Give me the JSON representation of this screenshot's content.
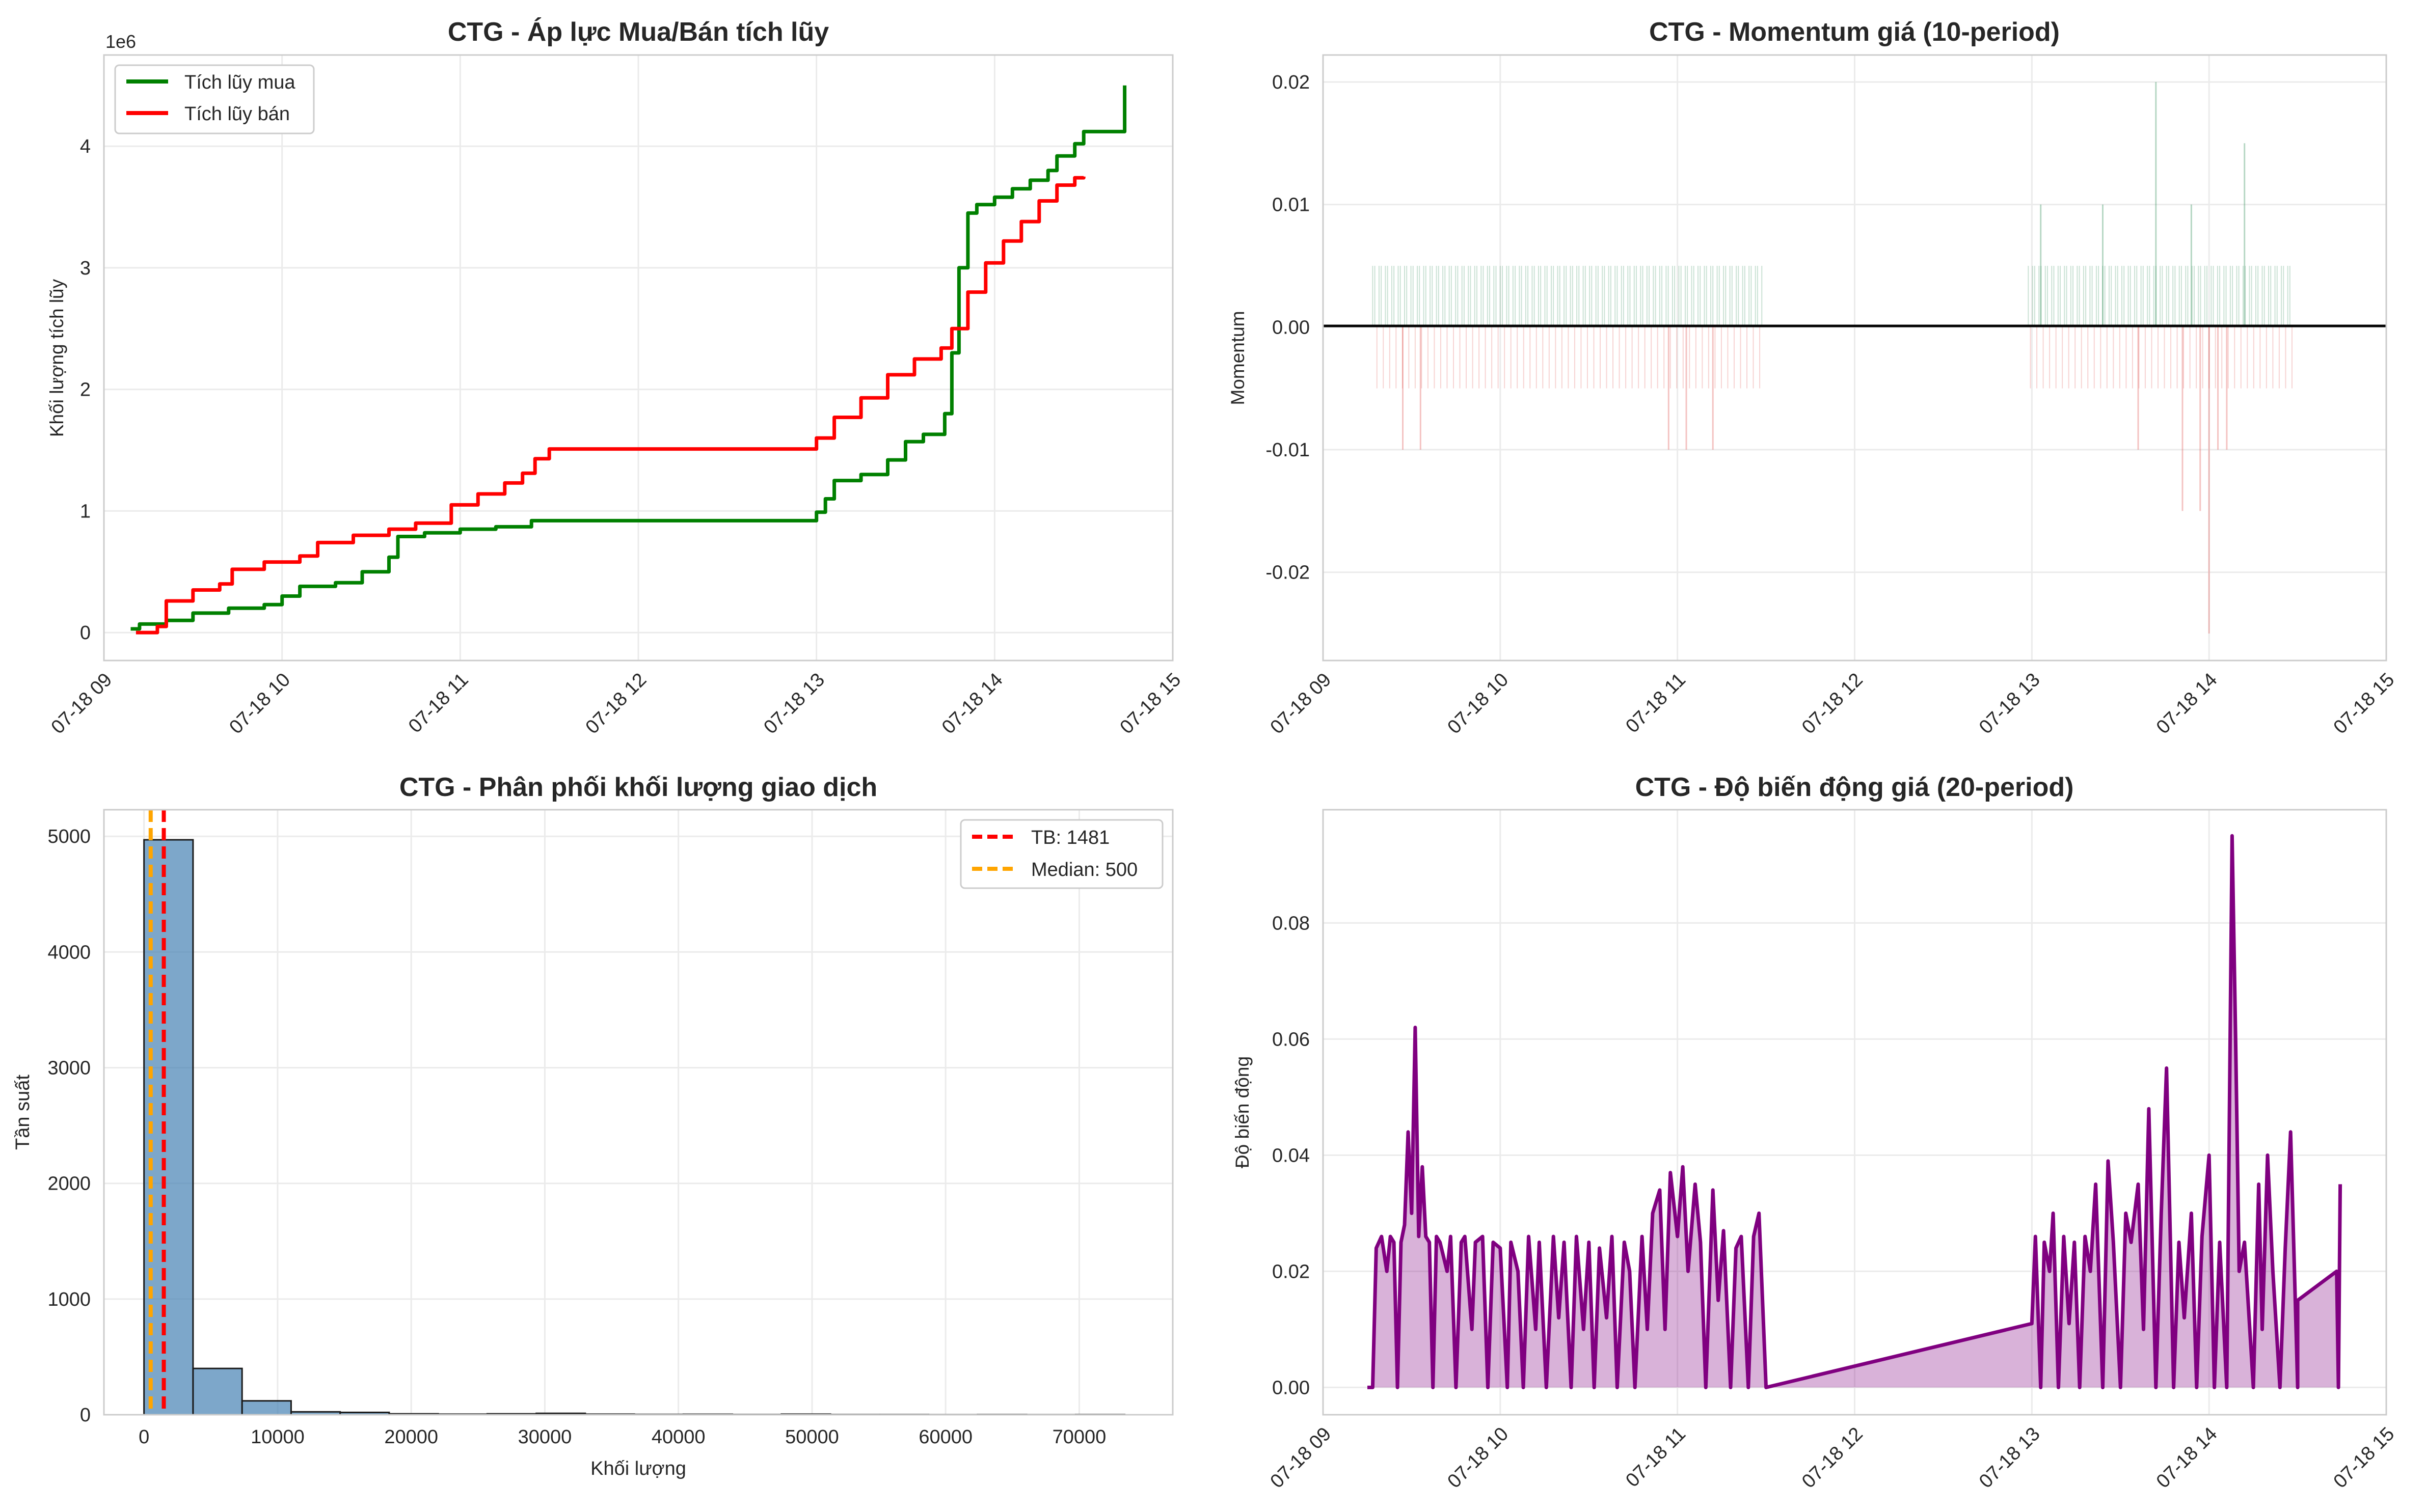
{
  "chart_data": [
    {
      "type": "line",
      "title": "CTG - Áp lực Mua/Bán tích lũy",
      "xlabel": "",
      "ylabel": "Khối lượng tích lũy",
      "offset_label": "1e6",
      "ylim": [
        -0.23,
        4.75
      ],
      "yticks": [
        0,
        1,
        2,
        3,
        4
      ],
      "xlim": [
        9.0,
        15.0
      ],
      "xticks": [
        9,
        10,
        11,
        12,
        13,
        14,
        15
      ],
      "xtick_labels": [
        "07-18 09",
        "07-18 10",
        "07-18 11",
        "07-18 12",
        "07-18 13",
        "07-18 14",
        "07-18 15"
      ],
      "legend": "top-left",
      "grid": true,
      "series": [
        {
          "name": "Tích lũy mua",
          "color": "#008000",
          "points": [
            [
              9.15,
              0.03
            ],
            [
              9.2,
              0.07
            ],
            [
              9.35,
              0.1
            ],
            [
              9.5,
              0.16
            ],
            [
              9.7,
              0.2
            ],
            [
              9.9,
              0.23
            ],
            [
              10.0,
              0.3
            ],
            [
              10.1,
              0.38
            ],
            [
              10.3,
              0.41
            ],
            [
              10.45,
              0.5
            ],
            [
              10.6,
              0.62
            ],
            [
              10.65,
              0.79
            ],
            [
              10.8,
              0.82
            ],
            [
              11.0,
              0.85
            ],
            [
              11.2,
              0.87
            ],
            [
              11.4,
              0.92
            ],
            [
              11.6,
              0.92
            ],
            [
              12.9,
              0.92
            ],
            [
              13.0,
              0.99
            ],
            [
              13.05,
              1.1
            ],
            [
              13.1,
              1.25
            ],
            [
              13.25,
              1.3
            ],
            [
              13.4,
              1.42
            ],
            [
              13.5,
              1.57
            ],
            [
              13.6,
              1.63
            ],
            [
              13.72,
              1.8
            ],
            [
              13.76,
              2.3
            ],
            [
              13.8,
              3.0
            ],
            [
              13.85,
              3.45
            ],
            [
              13.9,
              3.52
            ],
            [
              14.0,
              3.58
            ],
            [
              14.1,
              3.65
            ],
            [
              14.2,
              3.72
            ],
            [
              14.3,
              3.8
            ],
            [
              14.35,
              3.92
            ],
            [
              14.45,
              4.02
            ],
            [
              14.5,
              4.12
            ],
            [
              14.68,
              4.12
            ],
            [
              14.72,
              4.12
            ],
            [
              14.73,
              4.5
            ]
          ]
        },
        {
          "name": "Tích lũy bán",
          "color": "#ff0000",
          "points": [
            [
              9.18,
              0.0
            ],
            [
              9.3,
              0.05
            ],
            [
              9.35,
              0.26
            ],
            [
              9.5,
              0.35
            ],
            [
              9.65,
              0.4
            ],
            [
              9.72,
              0.52
            ],
            [
              9.9,
              0.58
            ],
            [
              10.1,
              0.63
            ],
            [
              10.2,
              0.74
            ],
            [
              10.4,
              0.8
            ],
            [
              10.6,
              0.85
            ],
            [
              10.75,
              0.9
            ],
            [
              10.95,
              1.05
            ],
            [
              11.1,
              1.14
            ],
            [
              11.25,
              1.23
            ],
            [
              11.35,
              1.31
            ],
            [
              11.42,
              1.43
            ],
            [
              11.5,
              1.51
            ],
            [
              12.9,
              1.51
            ],
            [
              13.0,
              1.6
            ],
            [
              13.1,
              1.77
            ],
            [
              13.25,
              1.93
            ],
            [
              13.4,
              2.12
            ],
            [
              13.55,
              2.25
            ],
            [
              13.7,
              2.34
            ],
            [
              13.76,
              2.5
            ],
            [
              13.8,
              2.5
            ],
            [
              13.85,
              2.8
            ],
            [
              13.95,
              3.04
            ],
            [
              14.05,
              3.22
            ],
            [
              14.15,
              3.38
            ],
            [
              14.25,
              3.55
            ],
            [
              14.35,
              3.68
            ],
            [
              14.45,
              3.74
            ],
            [
              14.5,
              3.75
            ]
          ]
        }
      ]
    },
    {
      "type": "bar",
      "title": "CTG - Momentum giá (10-period)",
      "xlabel": "",
      "ylabel": "Momentum",
      "ylim": [
        -0.0272,
        0.0222
      ],
      "yticks": [
        -0.02,
        -0.01,
        0.0,
        0.01,
        0.02
      ],
      "ytick_labels": [
        "-0.02",
        "-0.01",
        "0.00",
        "0.01",
        "0.02"
      ],
      "xlim": [
        9.0,
        15.0
      ],
      "xticks": [
        9,
        10,
        11,
        12,
        13,
        14,
        15
      ],
      "xtick_labels": [
        "07-18 09",
        "07-18 10",
        "07-18 11",
        "07-18 12",
        "07-18 13",
        "07-18 14",
        "07-18 15"
      ],
      "grid": true,
      "zero_line": true,
      "positive_color": "#2e8b57",
      "negative_color": "#e0524f",
      "segments": [
        [
          9.28,
          11.48
        ],
        [
          12.98,
          14.48
        ]
      ],
      "spikes": [
        [
          9.55,
          -0.01
        ],
        [
          9.45,
          -0.01
        ],
        [
          10.95,
          -0.01
        ],
        [
          11.05,
          -0.01
        ],
        [
          11.2,
          -0.01
        ],
        [
          13.05,
          0.01
        ],
        [
          13.4,
          0.01
        ],
        [
          13.7,
          0.02
        ],
        [
          13.85,
          -0.015
        ],
        [
          13.9,
          0.01
        ],
        [
          14.0,
          -0.025
        ],
        [
          14.05,
          -0.01
        ],
        [
          14.1,
          -0.01
        ],
        [
          14.2,
          0.015
        ],
        [
          13.6,
          -0.01
        ],
        [
          13.95,
          -0.015
        ]
      ]
    },
    {
      "type": "bar",
      "title": "CTG - Phân phối khối lượng giao dịch",
      "xlabel": "Khối lượng",
      "ylabel": "Tần suất",
      "xlim": [
        -3000,
        77000
      ],
      "ylim": [
        0,
        5230
      ],
      "xticks": [
        0,
        10000,
        20000,
        30000,
        40000,
        50000,
        60000,
        70000
      ],
      "yticks": [
        0,
        1000,
        2000,
        3000,
        4000,
        5000
      ],
      "bin_edges": [
        0,
        3670,
        7340,
        11010,
        14680,
        18350,
        22020,
        25690,
        29360,
        33030,
        36700,
        40370,
        44040,
        47710,
        51380,
        55050,
        58720,
        62390,
        66060,
        69730,
        73400
      ],
      "values": [
        4970,
        400,
        120,
        25,
        20,
        8,
        5,
        8,
        12,
        5,
        3,
        4,
        2,
        5,
        2,
        2,
        1,
        2,
        1,
        2
      ],
      "bar_color": "#4682b4",
      "legend": "top-right",
      "grid": true,
      "reference_lines": [
        {
          "label": "TB: 1481",
          "value": 1481,
          "color": "#ff0000"
        },
        {
          "label": "Median: 500",
          "value": 500,
          "color": "#ffa500"
        }
      ]
    },
    {
      "type": "area",
      "title": "CTG - Độ biến động giá (20-period)",
      "xlabel": "",
      "ylabel": "Độ biến động",
      "ylim": [
        -0.0047,
        0.0995
      ],
      "yticks": [
        0.0,
        0.02,
        0.04,
        0.06,
        0.08
      ],
      "ytick_labels": [
        "0.00",
        "0.02",
        "0.04",
        "0.06",
        "0.08"
      ],
      "xlim": [
        9.0,
        15.0
      ],
      "xticks": [
        9,
        10,
        11,
        12,
        13,
        14,
        15
      ],
      "xtick_labels": [
        "07-18 09",
        "07-18 10",
        "07-18 11",
        "07-18 12",
        "07-18 13",
        "07-18 14",
        "07-18 15"
      ],
      "color": "#800080",
      "grid": true,
      "points": [
        [
          9.25,
          0.0
        ],
        [
          9.28,
          0.0
        ],
        [
          9.3,
          0.024
        ],
        [
          9.33,
          0.026
        ],
        [
          9.36,
          0.02
        ],
        [
          9.38,
          0.026
        ],
        [
          9.4,
          0.025
        ],
        [
          9.42,
          0.0
        ],
        [
          9.44,
          0.025
        ],
        [
          9.46,
          0.028
        ],
        [
          9.48,
          0.044
        ],
        [
          9.5,
          0.03
        ],
        [
          9.52,
          0.062
        ],
        [
          9.54,
          0.026
        ],
        [
          9.56,
          0.038
        ],
        [
          9.58,
          0.026
        ],
        [
          9.6,
          0.025
        ],
        [
          9.62,
          0.0
        ],
        [
          9.64,
          0.026
        ],
        [
          9.66,
          0.025
        ],
        [
          9.7,
          0.02
        ],
        [
          9.72,
          0.026
        ],
        [
          9.75,
          0.0
        ],
        [
          9.78,
          0.025
        ],
        [
          9.8,
          0.026
        ],
        [
          9.84,
          0.01
        ],
        [
          9.86,
          0.025
        ],
        [
          9.9,
          0.026
        ],
        [
          9.93,
          0.0
        ],
        [
          9.96,
          0.025
        ],
        [
          10.0,
          0.024
        ],
        [
          10.04,
          0.0
        ],
        [
          10.06,
          0.025
        ],
        [
          10.1,
          0.02
        ],
        [
          10.13,
          0.0
        ],
        [
          10.16,
          0.026
        ],
        [
          10.2,
          0.01
        ],
        [
          10.22,
          0.025
        ],
        [
          10.26,
          0.0
        ],
        [
          10.3,
          0.026
        ],
        [
          10.33,
          0.012
        ],
        [
          10.36,
          0.025
        ],
        [
          10.4,
          0.0
        ],
        [
          10.43,
          0.026
        ],
        [
          10.47,
          0.01
        ],
        [
          10.5,
          0.025
        ],
        [
          10.53,
          0.0
        ],
        [
          10.56,
          0.024
        ],
        [
          10.6,
          0.012
        ],
        [
          10.63,
          0.026
        ],
        [
          10.66,
          0.0
        ],
        [
          10.7,
          0.025
        ],
        [
          10.73,
          0.02
        ],
        [
          10.76,
          0.0
        ],
        [
          10.8,
          0.026
        ],
        [
          10.83,
          0.01
        ],
        [
          10.86,
          0.03
        ],
        [
          10.9,
          0.034
        ],
        [
          10.93,
          0.01
        ],
        [
          10.96,
          0.037
        ],
        [
          11.0,
          0.026
        ],
        [
          11.03,
          0.038
        ],
        [
          11.06,
          0.02
        ],
        [
          11.1,
          0.035
        ],
        [
          11.13,
          0.025
        ],
        [
          11.16,
          0.0
        ],
        [
          11.2,
          0.034
        ],
        [
          11.23,
          0.015
        ],
        [
          11.26,
          0.027
        ],
        [
          11.3,
          0.0
        ],
        [
          11.33,
          0.024
        ],
        [
          11.36,
          0.026
        ],
        [
          11.4,
          0.0
        ],
        [
          11.43,
          0.026
        ],
        [
          11.46,
          0.03
        ],
        [
          11.5,
          0.0
        ],
        [
          13.0,
          0.011
        ],
        [
          13.02,
          0.026
        ],
        [
          13.05,
          0.0
        ],
        [
          13.07,
          0.025
        ],
        [
          13.1,
          0.02
        ],
        [
          13.12,
          0.03
        ],
        [
          13.15,
          0.0
        ],
        [
          13.18,
          0.026
        ],
        [
          13.21,
          0.011
        ],
        [
          13.24,
          0.025
        ],
        [
          13.27,
          0.0
        ],
        [
          13.3,
          0.026
        ],
        [
          13.33,
          0.02
        ],
        [
          13.36,
          0.035
        ],
        [
          13.4,
          0.0
        ],
        [
          13.43,
          0.039
        ],
        [
          13.46,
          0.025
        ],
        [
          13.5,
          0.0
        ],
        [
          13.53,
          0.03
        ],
        [
          13.56,
          0.025
        ],
        [
          13.6,
          0.035
        ],
        [
          13.63,
          0.01
        ],
        [
          13.66,
          0.048
        ],
        [
          13.7,
          0.0
        ],
        [
          13.73,
          0.03
        ],
        [
          13.76,
          0.055
        ],
        [
          13.8,
          0.0
        ],
        [
          13.83,
          0.025
        ],
        [
          13.86,
          0.012
        ],
        [
          13.9,
          0.03
        ],
        [
          13.93,
          0.0
        ],
        [
          13.96,
          0.026
        ],
        [
          14.0,
          0.04
        ],
        [
          14.03,
          0.0
        ],
        [
          14.06,
          0.025
        ],
        [
          14.1,
          0.0
        ],
        [
          14.13,
          0.095
        ],
        [
          14.15,
          0.06
        ],
        [
          14.17,
          0.02
        ],
        [
          14.2,
          0.025
        ],
        [
          14.25,
          0.0
        ],
        [
          14.28,
          0.035
        ],
        [
          14.3,
          0.01
        ],
        [
          14.33,
          0.04
        ],
        [
          14.36,
          0.02
        ],
        [
          14.4,
          0.0
        ],
        [
          14.43,
          0.024
        ],
        [
          14.46,
          0.044
        ],
        [
          14.5,
          0.0
        ],
        [
          14.5,
          0.015
        ],
        [
          14.72,
          0.02
        ],
        [
          14.73,
          0.0
        ],
        [
          14.74,
          0.035
        ]
      ]
    }
  ]
}
